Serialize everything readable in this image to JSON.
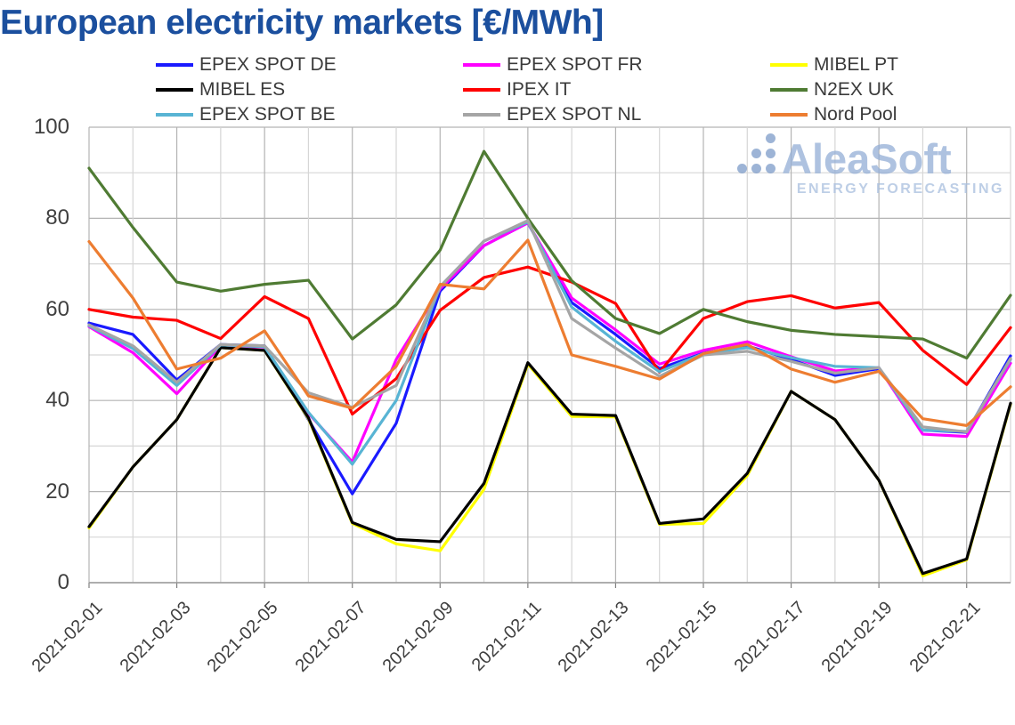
{
  "title": "European electricity markets [€/MWh]",
  "watermark": {
    "name": "AleaSoft",
    "subtitle": "ENERGY FORECASTING"
  },
  "chart_data": {
    "type": "line",
    "title": "European electricity markets [€/MWh]",
    "xlabel": "",
    "ylabel": "",
    "ylim": [
      0,
      100
    ],
    "yticks": [
      0,
      20,
      40,
      60,
      80,
      100
    ],
    "grid": true,
    "legend_position": "top",
    "x": [
      "2021-02-01",
      "2021-02-02",
      "2021-02-03",
      "2021-02-04",
      "2021-02-05",
      "2021-02-06",
      "2021-02-07",
      "2021-02-08",
      "2021-02-09",
      "2021-02-10",
      "2021-02-11",
      "2021-02-12",
      "2021-02-13",
      "2021-02-14",
      "2021-02-15",
      "2021-02-16",
      "2021-02-17",
      "2021-02-18",
      "2021-02-19",
      "2021-02-20",
      "2021-02-21",
      "2021-02-22"
    ],
    "x_tick_labels": [
      "2021-02-01",
      "2021-02-03",
      "2021-02-05",
      "2021-02-07",
      "2021-02-09",
      "2021-02-11",
      "2021-02-13",
      "2021-02-15",
      "2021-02-17",
      "2021-02-19",
      "2021-02-21"
    ],
    "series": [
      {
        "name": "EPEX SPOT DE",
        "color": "#1a1aff",
        "values": [
          57.0,
          54.5,
          44.5,
          52.3,
          52.0,
          35.8,
          19.5,
          35.0,
          64.0,
          74.0,
          79.0,
          61.5,
          54.5,
          47.0,
          50.4,
          52.0,
          49.0,
          45.5,
          47.0,
          33.5,
          33.0,
          49.8
        ]
      },
      {
        "name": "EPEX SPOT FR",
        "color": "#ff00ff",
        "values": [
          56.2,
          50.5,
          41.5,
          52.0,
          51.7,
          37.2,
          26.5,
          49.0,
          64.5,
          74.0,
          79.0,
          62.5,
          55.5,
          48.0,
          51.0,
          52.9,
          49.6,
          46.5,
          47.2,
          32.6,
          32.1,
          48.2
        ]
      },
      {
        "name": "MIBEL PT",
        "color": "#ffff00",
        "values": [
          12.0,
          25.4,
          35.8,
          51.6,
          51.0,
          36.0,
          13.0,
          8.5,
          7.0,
          20.5,
          48.0,
          36.5,
          36.4,
          12.8,
          13.0,
          23.5,
          42.0,
          35.8,
          22.5,
          1.5,
          5.0,
          39.2
        ]
      },
      {
        "name": "MIBEL ES",
        "color": "#000000",
        "values": [
          12.3,
          25.4,
          35.8,
          51.6,
          51.0,
          36.2,
          13.2,
          9.5,
          9.0,
          21.8,
          48.3,
          37.0,
          36.7,
          13.0,
          14.0,
          24.0,
          42.0,
          35.8,
          22.5,
          2.0,
          5.2,
          39.4
        ]
      },
      {
        "name": "IPEX IT",
        "color": "#ff0000",
        "values": [
          60.0,
          58.3,
          57.6,
          53.6,
          62.8,
          58.0,
          37.0,
          44.8,
          59.8,
          67.0,
          69.3,
          66.0,
          61.3,
          46.2,
          58.0,
          61.7,
          63.0,
          60.3,
          61.5,
          51.0,
          43.5,
          56.0
        ]
      },
      {
        "name": "N2EX UK",
        "color": "#4f7b33",
        "values": [
          91.0,
          78.0,
          66.0,
          64.0,
          65.5,
          66.4,
          53.5,
          61.0,
          73.0,
          94.7,
          80.0,
          66.3,
          58.0,
          54.7,
          60.0,
          57.3,
          55.4,
          54.5,
          54.0,
          53.5,
          49.3,
          63.1
        ]
      },
      {
        "name": "EPEX SPOT BE",
        "color": "#58b4d4",
        "values": [
          56.4,
          51.4,
          43.3,
          52.2,
          51.8,
          37.4,
          26.0,
          40.0,
          65.0,
          75.0,
          79.2,
          60.5,
          53.0,
          46.3,
          50.3,
          51.6,
          49.4,
          47.5,
          47.2,
          33.5,
          33.2,
          49.0
        ]
      },
      {
        "name": "EPEX SPOT NL",
        "color": "#a5a5a5",
        "values": [
          56.6,
          52.0,
          44.0,
          52.3,
          52.0,
          41.7,
          38.5,
          43.3,
          65.0,
          75.0,
          79.5,
          58.0,
          51.5,
          45.3,
          50.0,
          50.8,
          48.6,
          46.0,
          47.2,
          34.2,
          33.1,
          49.2
        ]
      },
      {
        "name": "Nord Pool",
        "color": "#ed7d31",
        "values": [
          74.9,
          62.5,
          46.9,
          49.3,
          55.3,
          41.0,
          38.3,
          47.5,
          65.5,
          64.5,
          75.2,
          50.0,
          47.5,
          44.7,
          50.3,
          52.3,
          46.9,
          44.0,
          46.4,
          36.0,
          34.5,
          43.0
        ]
      }
    ]
  }
}
